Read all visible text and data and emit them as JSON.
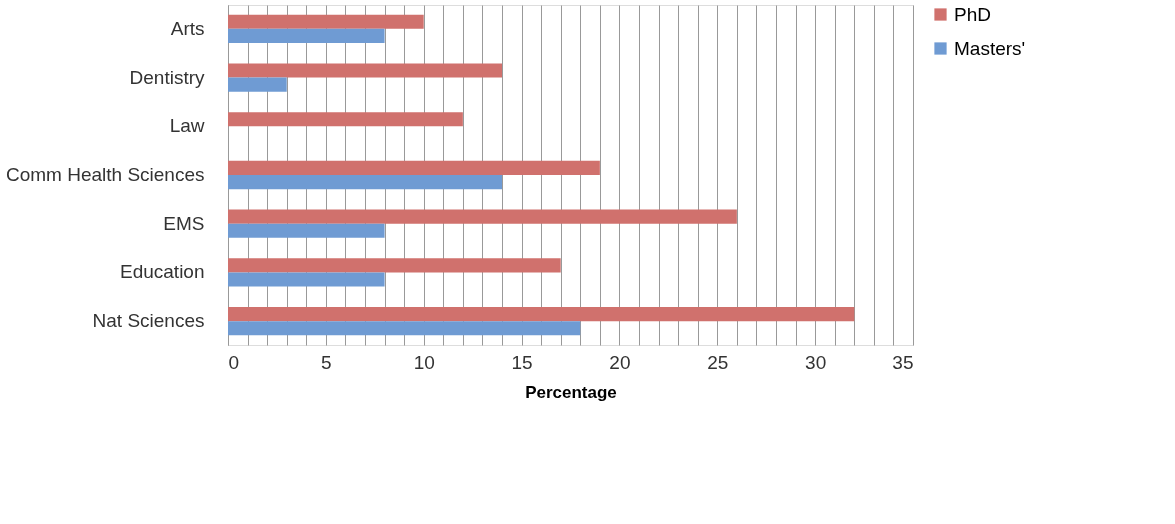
{
  "chart_data": {
    "type": "bar",
    "orientation": "horizontal",
    "xlabel": "Percentage",
    "categories": [
      "Arts",
      "Dentistry",
      "Law",
      "Comm Health Sciences",
      "EMS",
      "Education",
      "Nat Sciences"
    ],
    "series": [
      {
        "name": "PhD",
        "color": "#d0716d",
        "values": [
          10,
          14,
          12,
          19,
          26,
          17,
          32
        ]
      },
      {
        "name": "Masters'",
        "color": "#6f9bd3",
        "values": [
          8,
          3,
          null,
          14,
          8,
          8,
          18
        ]
      }
    ],
    "xlim": [
      0,
      35
    ],
    "xticks": [
      0,
      {
        "value": 1,
        "label": null
      },
      {
        "value": 2,
        "label": null
      },
      {
        "value": 3,
        "label": null
      },
      {
        "value": 4,
        "label": null
      },
      5,
      {
        "value": 6,
        "label": null
      },
      {
        "value": 7,
        "label": null
      },
      {
        "value": 8,
        "label": null
      },
      {
        "value": 9,
        "label": null
      },
      10,
      {
        "value": 11,
        "label": null
      },
      {
        "value": 12,
        "label": null
      },
      {
        "value": 13,
        "label": null
      },
      {
        "value": 14,
        "label": null
      },
      15,
      {
        "value": 16,
        "label": null
      },
      {
        "value": 17,
        "label": null
      },
      {
        "value": 18,
        "label": null
      },
      {
        "value": 19,
        "label": null
      },
      20,
      {
        "value": 21,
        "label": null
      },
      {
        "value": 22,
        "label": null
      },
      {
        "value": 23,
        "label": null
      },
      {
        "value": 24,
        "label": null
      },
      25,
      {
        "value": 26,
        "label": null
      },
      {
        "value": 27,
        "label": null
      },
      {
        "value": 28,
        "label": null
      },
      {
        "value": 29,
        "label": null
      },
      30,
      {
        "value": 31,
        "label": null
      },
      {
        "value": 32,
        "label": null
      },
      {
        "value": 33,
        "label": null
      },
      {
        "value": 34,
        "label": null
      },
      35
    ],
    "grid": "x",
    "legend": "right"
  }
}
